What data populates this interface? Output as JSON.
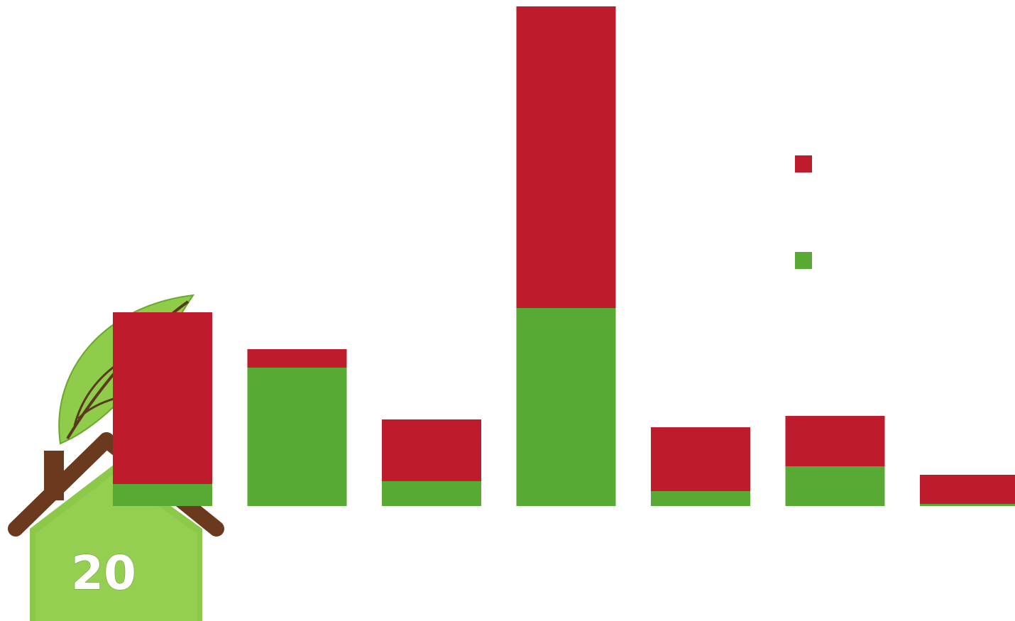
{
  "logo": {
    "number": "20",
    "icon": "house-leaf-icon"
  },
  "colors": {
    "series_red": "#be1c2c",
    "series_green": "#58aa34"
  },
  "chart_data": {
    "type": "bar",
    "stacked": true,
    "title": "",
    "xlabel": "",
    "ylabel": "",
    "categories": [
      "",
      "",
      "",
      "",
      "",
      "",
      ""
    ],
    "ylim": [
      0,
      704
    ],
    "grid": false,
    "axes_visible": false,
    "legend_placement": "right",
    "series": [
      {
        "color": "#58aa34",
        "values": [
          31,
          195,
          35,
          279,
          21,
          56,
          3
        ]
      },
      {
        "color": "#be1c2c",
        "values": [
          242,
          26,
          87,
          425,
          90,
          71,
          41
        ]
      }
    ]
  }
}
